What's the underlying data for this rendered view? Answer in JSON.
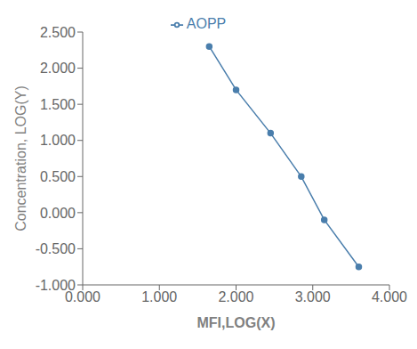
{
  "chart_data": {
    "type": "line",
    "x": [
      1.65,
      2.0,
      2.45,
      2.85,
      3.15,
      3.6
    ],
    "series": [
      {
        "name": "AOPP",
        "color": "#4a7eac",
        "marker": "circle",
        "values": [
          2.3,
          1.7,
          1.1,
          0.5,
          -0.1,
          -0.75
        ]
      }
    ],
    "xlabel": "MFI,LOG(X)",
    "ylabel": "Concentration, LOG(Y)",
    "xlim": [
      0.0,
      4.0
    ],
    "ylim": [
      -1.0,
      2.5
    ],
    "xticks": [
      {
        "value": 0.0,
        "label": "0.000"
      },
      {
        "value": 1.0,
        "label": "1.000"
      },
      {
        "value": 2.0,
        "label": "2.000"
      },
      {
        "value": 3.0,
        "label": "3.000"
      },
      {
        "value": 4.0,
        "label": "4.000"
      }
    ],
    "yticks": [
      {
        "value": -1.0,
        "label": "-1.000"
      },
      {
        "value": -0.5,
        "label": "-0.500"
      },
      {
        "value": 0.0,
        "label": "0.000"
      },
      {
        "value": 0.5,
        "label": "0.500"
      },
      {
        "value": 1.0,
        "label": "1.000"
      },
      {
        "value": 1.5,
        "label": "1.500"
      },
      {
        "value": 2.0,
        "label": "2.000"
      },
      {
        "value": 2.5,
        "label": "2.500"
      }
    ],
    "legend": "top"
  }
}
